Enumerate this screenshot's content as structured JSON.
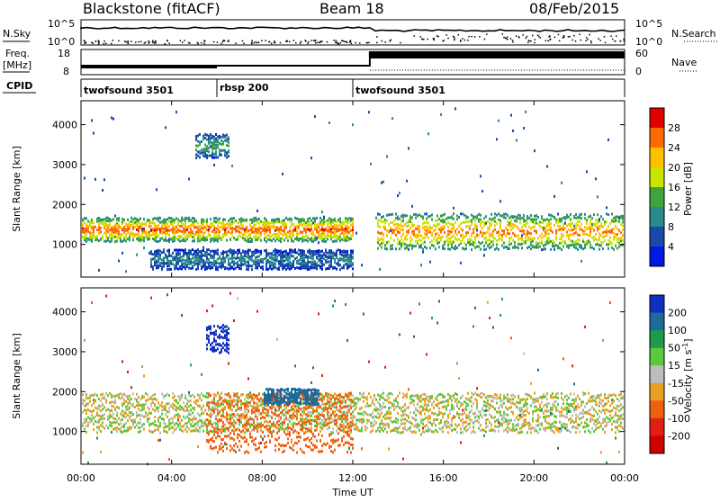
{
  "header": {
    "station": "Blackstone (fitACF)",
    "beam": "Beam 18",
    "date": "08/Feb/2015"
  },
  "top_panels": {
    "nsky_label": "N.Sky",
    "nsearch_label": "N.Search",
    "freq_label_1": "Freq.",
    "freq_label_2": "[MHz]",
    "nave_label": "Nave",
    "cpid_label": "CPID",
    "nsky_ticks": [
      "10^5",
      "10^0"
    ],
    "nsearch_ticks": [
      "10^5",
      "10^0"
    ],
    "freq_ticks": [
      "18",
      "8"
    ],
    "nave_ticks": [
      "60",
      "0"
    ]
  },
  "cpid_segments": [
    {
      "label": "twofsound 3501",
      "start": 0.0,
      "end": 6.0
    },
    {
      "label": "rbsp 200",
      "start": 6.0,
      "end": 12.0
    },
    {
      "label": "twofsound 3501",
      "start": 12.0,
      "end": 24.0
    }
  ],
  "x_axis": {
    "label": "Time UT",
    "ticks": [
      "00:00",
      "04:00",
      "08:00",
      "12:00",
      "16:00",
      "20:00",
      "00:00"
    ],
    "range_hours": [
      0,
      24
    ]
  },
  "chart_data": [
    {
      "type": "heatmap",
      "ylabel": "Slant Range [km]",
      "y_ticks": [
        1000,
        2000,
        3000,
        4000
      ],
      "ylim": [
        180,
        4600
      ],
      "colorbar_label": "Power [dB]",
      "colorbar_ticks": [
        "28",
        "24",
        "20",
        "16",
        "12",
        "8",
        "4"
      ],
      "colorbar_colors": [
        "#e00000",
        "#ff6a00",
        "#ffc000",
        "#c8e600",
        "#3ea43e",
        "#2a8a8a",
        "#1a4aa8",
        "#0018e0"
      ],
      "features": [
        {
          "name": "main band",
          "x_start": 0.0,
          "x_end": 12.0,
          "range_km": [
            1100,
            1700
          ],
          "level_dB": 28
        },
        {
          "name": "twofsound band",
          "x_start": 13.0,
          "x_end": 24.0,
          "range_km": [
            900,
            1800
          ],
          "level_dB": 26
        },
        {
          "name": "upper scatter",
          "x_start": 5.0,
          "x_end": 6.5,
          "range_km": [
            3200,
            3800
          ],
          "level_dB": 14
        },
        {
          "name": "lower band",
          "x_start": 3.0,
          "x_end": 12.0,
          "range_km": [
            400,
            900
          ],
          "level_dB": 10
        }
      ]
    },
    {
      "type": "heatmap",
      "ylabel": "Slant Range [km]",
      "y_ticks": [
        1000,
        2000,
        3000,
        4000
      ],
      "ylim": [
        180,
        4600
      ],
      "colorbar_label": "Velocity [m s^-1]",
      "colorbar_ticks": [
        "200",
        "100",
        "50",
        "15",
        "-15",
        "-50",
        "-100",
        "-200"
      ],
      "colorbar_colors": [
        "#1030c0",
        "#1e6a9a",
        "#1e9a4a",
        "#5cc83c",
        "#bdbdbd",
        "#e8a020",
        "#f06010",
        "#e02010",
        "#d00000"
      ],
      "features": [
        {
          "name": "ground scatter",
          "x_start": 0.0,
          "x_end": 24.0,
          "range_km": [
            1000,
            2000
          ],
          "velocity": 0
        },
        {
          "name": "negative band",
          "x_start": 5.5,
          "x_end": 12.0,
          "range_km": [
            500,
            2000
          ],
          "velocity": -50
        },
        {
          "name": "positive patch",
          "x_start": 8.0,
          "x_end": 10.5,
          "range_km": [
            1700,
            2100
          ],
          "velocity": 100
        },
        {
          "name": "blue patch",
          "x_start": 5.5,
          "x_end": 6.5,
          "range_km": [
            3000,
            3700
          ],
          "velocity": 200
        }
      ]
    }
  ]
}
